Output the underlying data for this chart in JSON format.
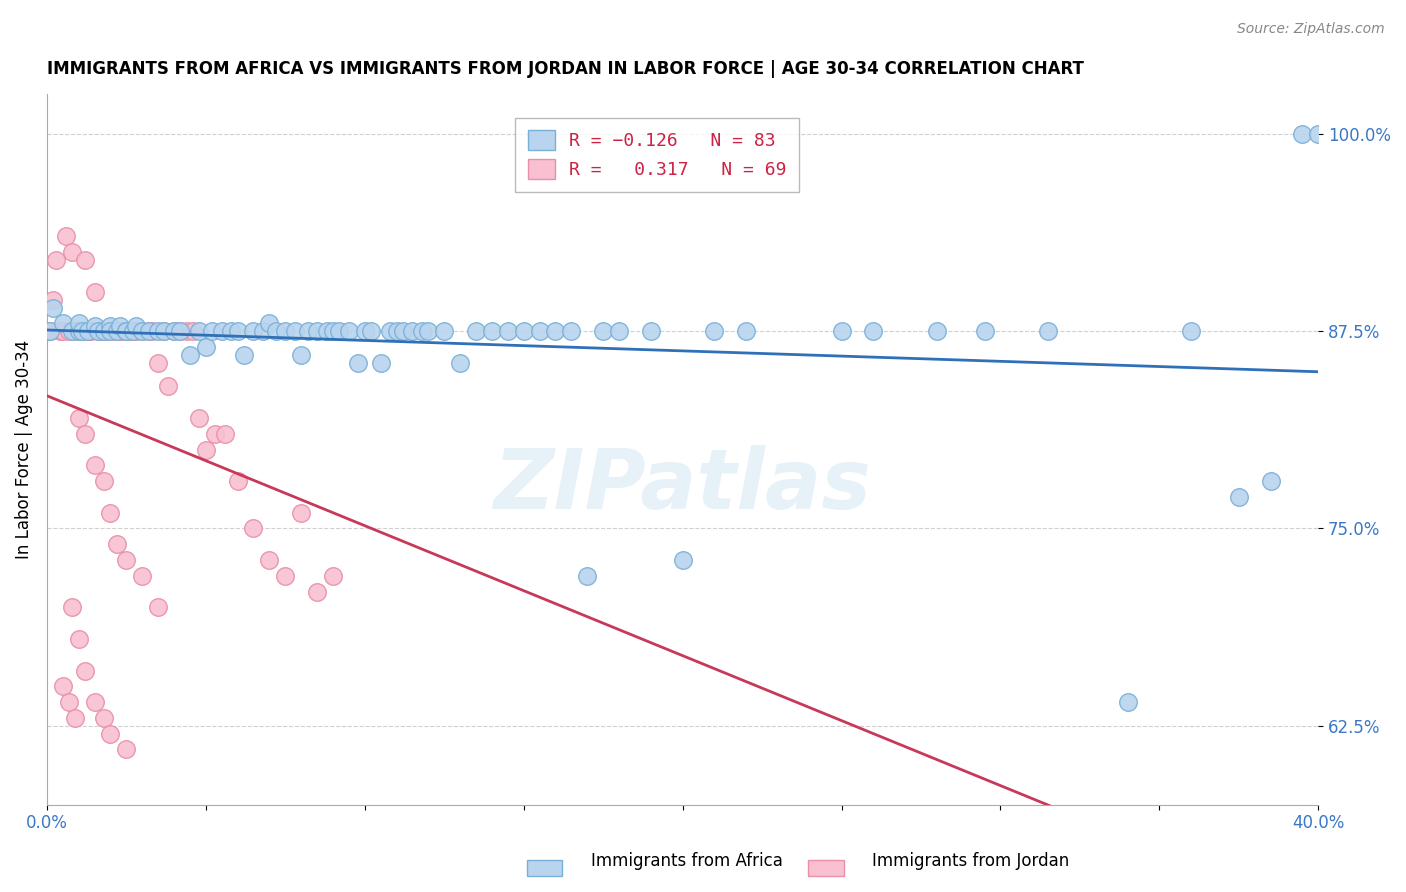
{
  "title": "IMMIGRANTS FROM AFRICA VS IMMIGRANTS FROM JORDAN IN LABOR FORCE | AGE 30-34 CORRELATION CHART",
  "source": "Source: ZipAtlas.com",
  "ylabel": "In Labor Force | Age 30-34",
  "xlim": [
    0.0,
    0.4
  ],
  "ylim": [
    0.575,
    1.025
  ],
  "yticks": [
    0.625,
    0.75,
    0.875,
    1.0
  ],
  "ytick_labels": [
    "62.5%",
    "75.0%",
    "87.5%",
    "100.0%"
  ],
  "xticks": [
    0.0,
    0.05,
    0.1,
    0.15,
    0.2,
    0.25,
    0.3,
    0.35,
    0.4
  ],
  "xtick_labels": [
    "0.0%",
    "",
    "",
    "",
    "",
    "",
    "",
    "",
    "40.0%"
  ],
  "africa_color": "#b8d4ee",
  "africa_edge": "#7ab0d8",
  "jordan_color": "#f8c0d0",
  "jordan_edge": "#e890a8",
  "trend_africa_color": "#3070b8",
  "trend_jordan_color": "#c83858",
  "R_africa": -0.126,
  "N_africa": 83,
  "R_jordan": 0.317,
  "N_jordan": 69,
  "watermark_text": "ZIPatlas",
  "africa_scatter_x": [
    0.001,
    0.002,
    0.005,
    0.008,
    0.01,
    0.01,
    0.011,
    0.013,
    0.015,
    0.016,
    0.018,
    0.02,
    0.02,
    0.022,
    0.023,
    0.025,
    0.025,
    0.027,
    0.028,
    0.03,
    0.032,
    0.035,
    0.037,
    0.04,
    0.042,
    0.045,
    0.048,
    0.05,
    0.052,
    0.055,
    0.058,
    0.06,
    0.062,
    0.065,
    0.068,
    0.07,
    0.072,
    0.075,
    0.078,
    0.08,
    0.082,
    0.085,
    0.088,
    0.09,
    0.092,
    0.095,
    0.098,
    0.1,
    0.102,
    0.105,
    0.108,
    0.11,
    0.112,
    0.115,
    0.118,
    0.12,
    0.125,
    0.13,
    0.135,
    0.14,
    0.145,
    0.15,
    0.155,
    0.16,
    0.165,
    0.17,
    0.175,
    0.18,
    0.19,
    0.2,
    0.21,
    0.22,
    0.25,
    0.26,
    0.28,
    0.295,
    0.315,
    0.34,
    0.36,
    0.375,
    0.385,
    0.395,
    0.4
  ],
  "africa_scatter_y": [
    0.875,
    0.89,
    0.88,
    0.875,
    0.875,
    0.88,
    0.875,
    0.875,
    0.878,
    0.875,
    0.875,
    0.878,
    0.875,
    0.875,
    0.878,
    0.875,
    0.875,
    0.875,
    0.878,
    0.875,
    0.875,
    0.875,
    0.875,
    0.875,
    0.875,
    0.86,
    0.875,
    0.865,
    0.875,
    0.875,
    0.875,
    0.875,
    0.86,
    0.875,
    0.875,
    0.88,
    0.875,
    0.875,
    0.875,
    0.86,
    0.875,
    0.875,
    0.875,
    0.875,
    0.875,
    0.875,
    0.855,
    0.875,
    0.875,
    0.855,
    0.875,
    0.875,
    0.875,
    0.875,
    0.875,
    0.875,
    0.875,
    0.855,
    0.875,
    0.875,
    0.875,
    0.875,
    0.875,
    0.875,
    0.875,
    0.72,
    0.875,
    0.875,
    0.875,
    0.73,
    0.875,
    0.875,
    0.875,
    0.875,
    0.875,
    0.875,
    0.875,
    0.64,
    0.875,
    0.77,
    0.78,
    1.0,
    1.0
  ],
  "jordan_scatter_x": [
    0.001,
    0.002,
    0.003,
    0.004,
    0.005,
    0.006,
    0.007,
    0.008,
    0.009,
    0.01,
    0.011,
    0.012,
    0.013,
    0.013,
    0.014,
    0.015,
    0.016,
    0.017,
    0.018,
    0.019,
    0.02,
    0.021,
    0.022,
    0.023,
    0.024,
    0.025,
    0.026,
    0.027,
    0.028,
    0.03,
    0.032,
    0.033,
    0.035,
    0.037,
    0.038,
    0.04,
    0.042,
    0.044,
    0.046,
    0.048,
    0.05,
    0.053,
    0.056,
    0.06,
    0.065,
    0.07,
    0.075,
    0.08,
    0.085,
    0.09,
    0.01,
    0.012,
    0.015,
    0.018,
    0.02,
    0.022,
    0.025,
    0.03,
    0.035,
    0.008,
    0.01,
    0.012,
    0.015,
    0.018,
    0.02,
    0.025,
    0.005,
    0.007,
    0.009
  ],
  "jordan_scatter_y": [
    0.875,
    0.895,
    0.92,
    0.875,
    0.875,
    0.935,
    0.875,
    0.925,
    0.875,
    0.875,
    0.875,
    0.92,
    0.875,
    0.875,
    0.875,
    0.9,
    0.875,
    0.875,
    0.875,
    0.875,
    0.875,
    0.875,
    0.875,
    0.875,
    0.875,
    0.875,
    0.875,
    0.875,
    0.875,
    0.875,
    0.875,
    0.875,
    0.855,
    0.875,
    0.84,
    0.875,
    0.875,
    0.875,
    0.875,
    0.82,
    0.8,
    0.81,
    0.81,
    0.78,
    0.75,
    0.73,
    0.72,
    0.76,
    0.71,
    0.72,
    0.82,
    0.81,
    0.79,
    0.78,
    0.76,
    0.74,
    0.73,
    0.72,
    0.7,
    0.7,
    0.68,
    0.66,
    0.64,
    0.63,
    0.62,
    0.61,
    0.65,
    0.64,
    0.63
  ]
}
